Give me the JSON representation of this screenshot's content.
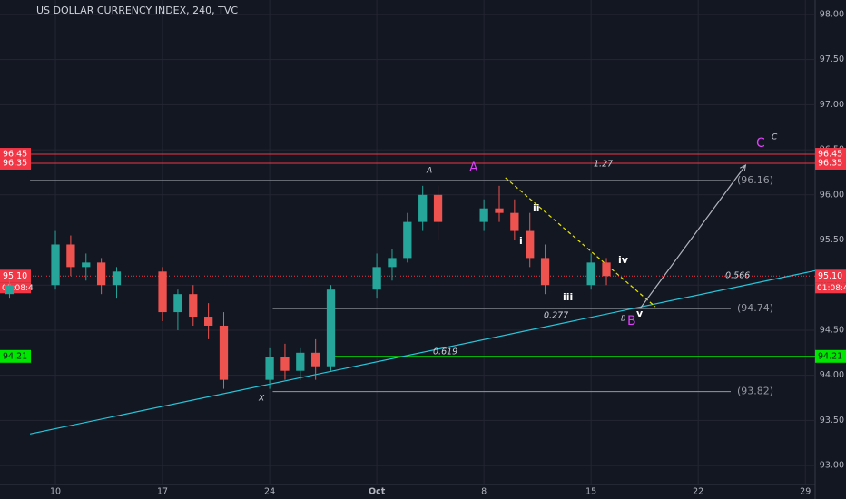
{
  "chart_data": {
    "type": "candlestick",
    "title": "US DOLLAR CURRENCY INDEX, 240, TVC",
    "x": [
      7,
      10,
      11,
      12,
      13,
      14,
      17,
      18,
      19,
      20,
      21,
      24,
      25,
      26,
      27,
      28,
      31,
      32,
      33,
      34,
      35,
      38,
      39,
      40,
      41,
      42,
      45,
      46
    ],
    "open": [
      94.9,
      95.0,
      95.45,
      95.2,
      95.25,
      95.0,
      95.15,
      94.7,
      94.9,
      94.65,
      94.55,
      93.95,
      94.2,
      94.05,
      94.25,
      94.1,
      94.95,
      95.2,
      95.3,
      95.7,
      96.0,
      95.7,
      95.85,
      95.8,
      95.6,
      95.3,
      95.0,
      95.25
    ],
    "high": [
      95.05,
      95.6,
      95.55,
      95.35,
      95.3,
      95.2,
      95.2,
      94.95,
      95.0,
      94.8,
      94.7,
      94.3,
      94.35,
      94.3,
      94.4,
      95.0,
      95.35,
      95.4,
      95.8,
      96.1,
      96.1,
      95.95,
      96.1,
      95.95,
      95.8,
      95.45,
      95.35,
      95.3
    ],
    "low": [
      94.85,
      94.95,
      95.1,
      95.05,
      94.9,
      94.85,
      94.6,
      94.5,
      94.55,
      94.4,
      93.85,
      93.85,
      93.95,
      93.95,
      93.95,
      94.05,
      94.85,
      95.05,
      95.25,
      95.6,
      95.5,
      95.6,
      95.7,
      95.5,
      95.2,
      94.9,
      94.95,
      95.0
    ],
    "close": [
      95.0,
      95.45,
      95.2,
      95.25,
      95.0,
      95.15,
      94.7,
      94.9,
      94.65,
      94.55,
      93.95,
      94.2,
      94.05,
      94.25,
      94.1,
      94.95,
      95.2,
      95.3,
      95.7,
      96.0,
      95.7,
      95.85,
      95.8,
      95.6,
      95.3,
      95.0,
      95.25,
      95.1
    ],
    "up_color": "#26a69a",
    "down_color": "#ef5350",
    "xlim": [
      6.38,
      59.64
    ],
    "xticks": [
      {
        "value": 10,
        "label": "10"
      },
      {
        "value": 17,
        "label": "17"
      },
      {
        "value": 24,
        "label": "24"
      },
      {
        "value": 31,
        "label": "Oct"
      },
      {
        "value": 38,
        "label": "8"
      },
      {
        "value": 45,
        "label": "15"
      },
      {
        "value": 52,
        "label": "22"
      },
      {
        "value": 59,
        "label": "29"
      }
    ],
    "ylim": [
      92.79,
      98.16
    ],
    "yticks": [
      {
        "value": 93,
        "label": "93.00"
      },
      {
        "value": 93.5,
        "label": "93.50"
      },
      {
        "value": 94,
        "label": "94.00"
      },
      {
        "value": 94.5,
        "label": "94.50"
      },
      {
        "value": 95,
        "label": "95.00"
      },
      {
        "value": 95.5,
        "label": "95.50"
      },
      {
        "value": 96,
        "label": "96.00"
      },
      {
        "value": 96.5,
        "label": "96.50"
      },
      {
        "value": 97,
        "label": "97.00"
      },
      {
        "value": 97.5,
        "label": "97.50"
      },
      {
        "value": 98,
        "label": "98.00"
      }
    ],
    "grid": true,
    "price_labels": [
      {
        "value": 96.45,
        "label": "96.45",
        "color": "#f23645"
      },
      {
        "value": 96.35,
        "label": "96.35",
        "color": "#f23645"
      },
      {
        "value": 95.1,
        "label": "95.10",
        "color": "#f23645"
      },
      {
        "value": 94.21,
        "label": "94.21",
        "color": "#00e600"
      }
    ],
    "countdown": "01:08:4",
    "levels": [
      {
        "value": 96.16,
        "label": "(96.16)",
        "start": 8.34
      },
      {
        "value": 94.74,
        "label": "(94.74)",
        "start": 24.2
      },
      {
        "value": 93.82,
        "label": "(93.82)",
        "start": 24.2
      }
    ],
    "fib_labels": [
      "1.27",
      "0.566",
      "0.277",
      "0.619"
    ],
    "wave_labels": [
      "A",
      "A",
      "B",
      "B",
      "C",
      "C",
      "X",
      "i",
      "ii",
      "iii",
      "iv",
      "v"
    ],
    "drawings": [
      {
        "name": "trendline",
        "color": "#26c6da",
        "points": [
          [
            8.34,
            93.35
          ],
          [
            59.64,
            95.16
          ]
        ]
      },
      {
        "name": "wedge",
        "color": "#e6e600",
        "points": [
          [
            39.4,
            96.19
          ],
          [
            49.2,
            94.76
          ]
        ]
      },
      {
        "name": "projection",
        "color": "#b2b5be",
        "points": [
          [
            48.2,
            94.74
          ],
          [
            55.1,
            96.33
          ]
        ]
      }
    ]
  }
}
